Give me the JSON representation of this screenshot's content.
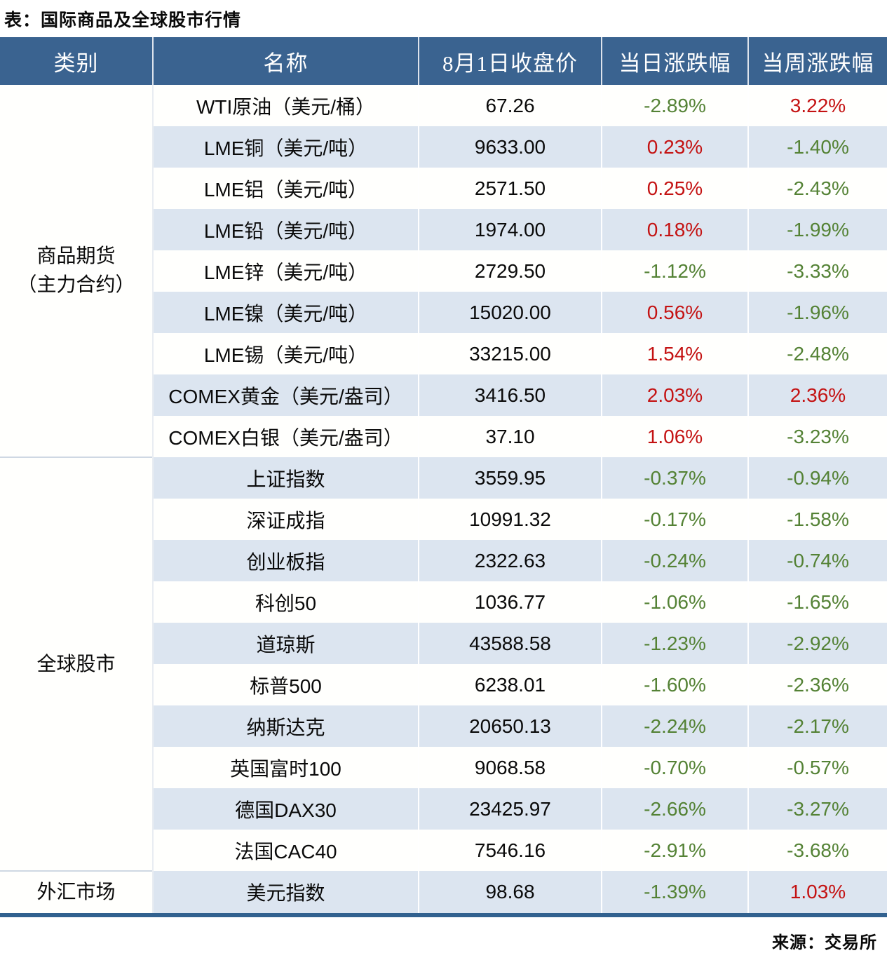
{
  "title": "表：国际商品及全球股市行情",
  "source": "来源：交易所",
  "colors": {
    "header_bg": "#3A6390",
    "stripe_row": "#DCE5F0",
    "up_red": "#C41212",
    "down_green": "#548235",
    "bottom_border": "#31618F"
  },
  "chart_data": {
    "type": "table",
    "title": "表：国际商品及全球股市行情",
    "source": "来源：交易所",
    "columns": [
      "类别",
      "名称",
      "8月1日收盘价",
      "当日涨跌幅",
      "当周涨跌幅"
    ],
    "groups": [
      {
        "category": "商品期货\n（主力合约）",
        "row_span": 9
      },
      {
        "category": "全球股市",
        "row_span": 10
      },
      {
        "category": "外汇市场",
        "row_span": 1
      }
    ],
    "rows": [
      {
        "name": "WTI原油（美元/桶）",
        "close": "67.26",
        "day": "-2.89%",
        "day_dir": "down",
        "week": "3.22%",
        "week_dir": "up"
      },
      {
        "name": "LME铜（美元/吨）",
        "close": "9633.00",
        "day": "0.23%",
        "day_dir": "up",
        "week": "-1.40%",
        "week_dir": "down"
      },
      {
        "name": "LME铝（美元/吨）",
        "close": "2571.50",
        "day": "0.25%",
        "day_dir": "up",
        "week": "-2.43%",
        "week_dir": "down"
      },
      {
        "name": "LME铅（美元/吨）",
        "close": "1974.00",
        "day": "0.18%",
        "day_dir": "up",
        "week": "-1.99%",
        "week_dir": "down"
      },
      {
        "name": "LME锌（美元/吨）",
        "close": "2729.50",
        "day": "-1.12%",
        "day_dir": "down",
        "week": "-3.33%",
        "week_dir": "down"
      },
      {
        "name": "LME镍（美元/吨）",
        "close": "15020.00",
        "day": "0.56%",
        "day_dir": "up",
        "week": "-1.96%",
        "week_dir": "down"
      },
      {
        "name": "LME锡（美元/吨）",
        "close": "33215.00",
        "day": "1.54%",
        "day_dir": "up",
        "week": "-2.48%",
        "week_dir": "down"
      },
      {
        "name": "COMEX黄金（美元/盎司）",
        "close": "3416.50",
        "day": "2.03%",
        "day_dir": "up",
        "week": "2.36%",
        "week_dir": "up"
      },
      {
        "name": "COMEX白银（美元/盎司）",
        "close": "37.10",
        "day": "1.06%",
        "day_dir": "up",
        "week": "-3.23%",
        "week_dir": "down"
      },
      {
        "name": "上证指数",
        "close": "3559.95",
        "day": "-0.37%",
        "day_dir": "down",
        "week": "-0.94%",
        "week_dir": "down"
      },
      {
        "name": "深证成指",
        "close": "10991.32",
        "day": "-0.17%",
        "day_dir": "down",
        "week": "-1.58%",
        "week_dir": "down"
      },
      {
        "name": "创业板指",
        "close": "2322.63",
        "day": "-0.24%",
        "day_dir": "down",
        "week": "-0.74%",
        "week_dir": "down"
      },
      {
        "name": "科创50",
        "close": "1036.77",
        "day": "-1.06%",
        "day_dir": "down",
        "week": "-1.65%",
        "week_dir": "down"
      },
      {
        "name": "道琼斯",
        "close": "43588.58",
        "day": "-1.23%",
        "day_dir": "down",
        "week": "-2.92%",
        "week_dir": "down"
      },
      {
        "name": "标普500",
        "close": "6238.01",
        "day": "-1.60%",
        "day_dir": "down",
        "week": "-2.36%",
        "week_dir": "down"
      },
      {
        "name": "纳斯达克",
        "close": "20650.13",
        "day": "-2.24%",
        "day_dir": "down",
        "week": "-2.17%",
        "week_dir": "down"
      },
      {
        "name": "英国富时100",
        "close": "9068.58",
        "day": "-0.70%",
        "day_dir": "down",
        "week": "-0.57%",
        "week_dir": "down"
      },
      {
        "name": "德国DAX30",
        "close": "23425.97",
        "day": "-2.66%",
        "day_dir": "down",
        "week": "-3.27%",
        "week_dir": "down"
      },
      {
        "name": "法国CAC40",
        "close": "7546.16",
        "day": "-2.91%",
        "day_dir": "down",
        "week": "-3.68%",
        "week_dir": "down"
      },
      {
        "name": "美元指数",
        "close": "98.68",
        "day": "-1.39%",
        "day_dir": "down",
        "week": "1.03%",
        "week_dir": "up"
      }
    ]
  }
}
